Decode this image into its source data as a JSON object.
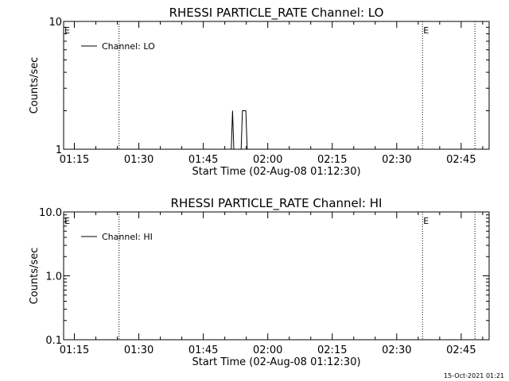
{
  "footer": {
    "timestamp": "15-Oct-2021 01:21"
  },
  "chart_data": [
    {
      "type": "line",
      "title": "RHESSI PARTICLE_RATE Channel: LO",
      "xlabel": "Start Time (02-Aug-08 01:12:30)",
      "ylabel": "Counts/sec",
      "y_scale": "log",
      "ylim": [
        1,
        10
      ],
      "y_ticks": [
        1,
        10
      ],
      "y_tick_labels": [
        "1",
        "10"
      ],
      "x_start": "01:12:30",
      "xlim": [
        "01:12:30",
        "02:51:30"
      ],
      "x_tick_labels": [
        "01:15",
        "01:30",
        "01:45",
        "02:00",
        "02:15",
        "02:30",
        "02:45"
      ],
      "x_ticks": [
        "01:15",
        "01:30",
        "01:45",
        "02:00",
        "02:15",
        "02:30",
        "02:45"
      ],
      "legend": {
        "position": "top-left",
        "entries": [
          "Channel: LO"
        ]
      },
      "grid": false,
      "series": [
        {
          "name": "Channel: LO",
          "x": [
            "01:51:30",
            "01:51:48",
            "01:52:06",
            "01:53:48",
            "01:54:06",
            "01:54:24",
            "01:54:54",
            "01:55:12"
          ],
          "y": [
            1,
            2,
            1,
            1,
            2,
            2,
            2,
            1
          ]
        }
      ],
      "event_markers": [
        {
          "time": "01:12:30",
          "label": "E"
        },
        {
          "time": "01:25:24",
          "label": ""
        },
        {
          "time": "02:36:00",
          "label": "E"
        },
        {
          "time": "02:48:12",
          "label": ""
        }
      ]
    },
    {
      "type": "line",
      "title": "RHESSI PARTICLE_RATE Channel: HI",
      "xlabel": "Start Time (02-Aug-08 01:12:30)",
      "ylabel": "Counts/sec",
      "y_scale": "log",
      "ylim": [
        0.1,
        10
      ],
      "y_ticks": [
        0.1,
        1,
        10
      ],
      "y_tick_labels": [
        "0.1",
        "1.0",
        "10.0"
      ],
      "x_start": "01:12:30",
      "xlim": [
        "01:12:30",
        "02:51:30"
      ],
      "x_tick_labels": [
        "01:15",
        "01:30",
        "01:45",
        "02:00",
        "02:15",
        "02:30",
        "02:45"
      ],
      "x_ticks": [
        "01:15",
        "01:30",
        "01:45",
        "02:00",
        "02:15",
        "02:30",
        "02:45"
      ],
      "legend": {
        "position": "top-left",
        "entries": [
          "Channel: HI"
        ]
      },
      "grid": false,
      "series": [
        {
          "name": "Channel: HI",
          "x": [],
          "y": []
        }
      ],
      "event_markers": [
        {
          "time": "01:12:30",
          "label": "E"
        },
        {
          "time": "01:25:24",
          "label": ""
        },
        {
          "time": "02:36:00",
          "label": "E"
        },
        {
          "time": "02:48:12",
          "label": ""
        }
      ]
    }
  ]
}
